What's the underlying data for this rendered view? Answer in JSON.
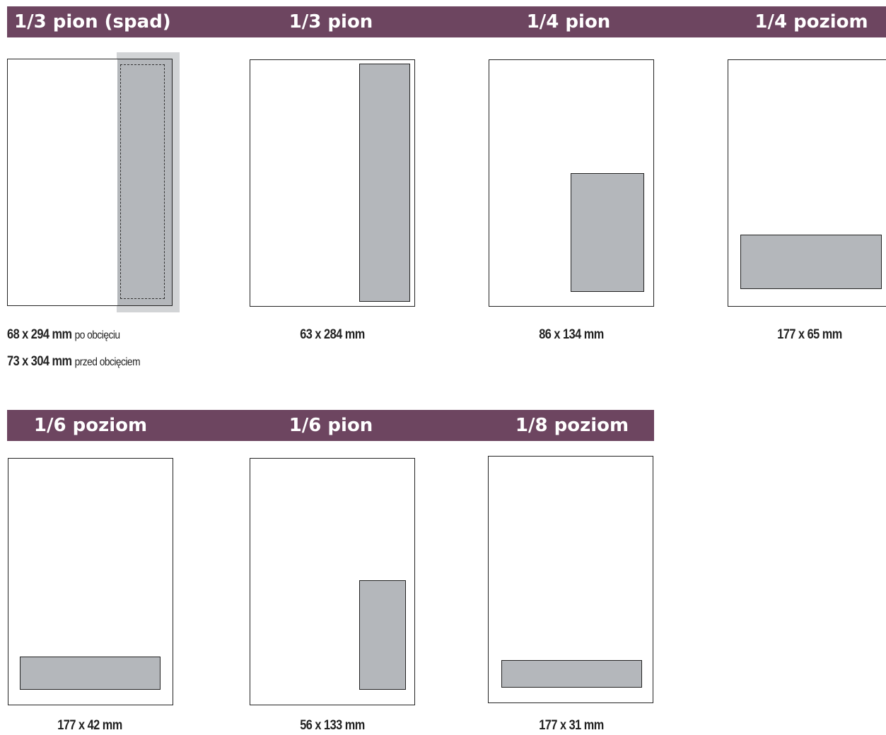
{
  "row1": {
    "titles": [
      "1/3 pion (spad)",
      "1/3 pion",
      "1/4 pion",
      "1/4 poziom"
    ],
    "dims": [
      {
        "size_a": "68 x 294 mm",
        "note_a": "po obcięciu",
        "size_b": "73 x 304 mm",
        "note_b": "przed obcięciem"
      },
      {
        "size_a": "63 x 284 mm"
      },
      {
        "size_a": "86 x 134 mm"
      },
      {
        "size_a": "177 x 65 mm"
      }
    ]
  },
  "row2": {
    "titles": [
      "1/6 poziom",
      "1/6 pion",
      "1/8 poziom"
    ],
    "dims": [
      {
        "size_a": "177 x 42 mm"
      },
      {
        "size_a": "56 x 133 mm"
      },
      {
        "size_a": "177 x 31 mm"
      }
    ]
  },
  "colors": {
    "band": "#6d4560",
    "ad_fill": "#b4b7bb",
    "bleed_fill": "#d2d4d6"
  }
}
